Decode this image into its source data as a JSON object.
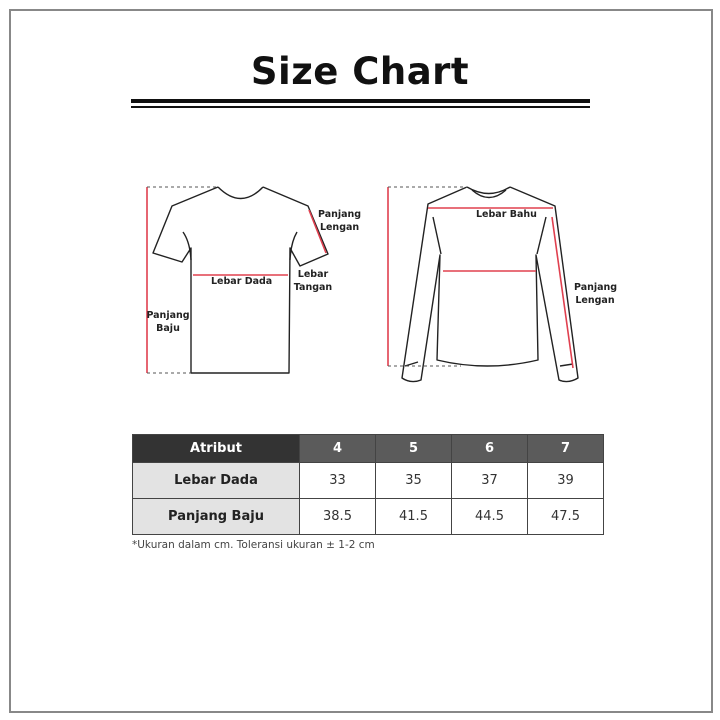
{
  "title": "Size Chart",
  "diagrams": {
    "tshirt": {
      "panjang_lengan": "Panjang Lengan",
      "lebar_tangan": "Lebar Tangan",
      "lebar_dada": "Lebar Dada",
      "panjang_baju": "Panjang Baju"
    },
    "longsleeve": {
      "lebar_bahu": "Lebar Bahu",
      "panjang_lengan": "Panjang Lengan"
    },
    "measure_color": "#e0404f"
  },
  "table": {
    "headers": [
      "Atribut",
      "4",
      "5",
      "6",
      "7"
    ],
    "rows": [
      {
        "label": "Lebar Dada",
        "values": [
          "33",
          "35",
          "37",
          "39"
        ]
      },
      {
        "label": "Panjang Baju",
        "values": [
          "38.5",
          "41.5",
          "44.5",
          "47.5"
        ]
      }
    ]
  },
  "note": "*Ukuran dalam cm. Toleransi ukuran ± 1-2 cm"
}
